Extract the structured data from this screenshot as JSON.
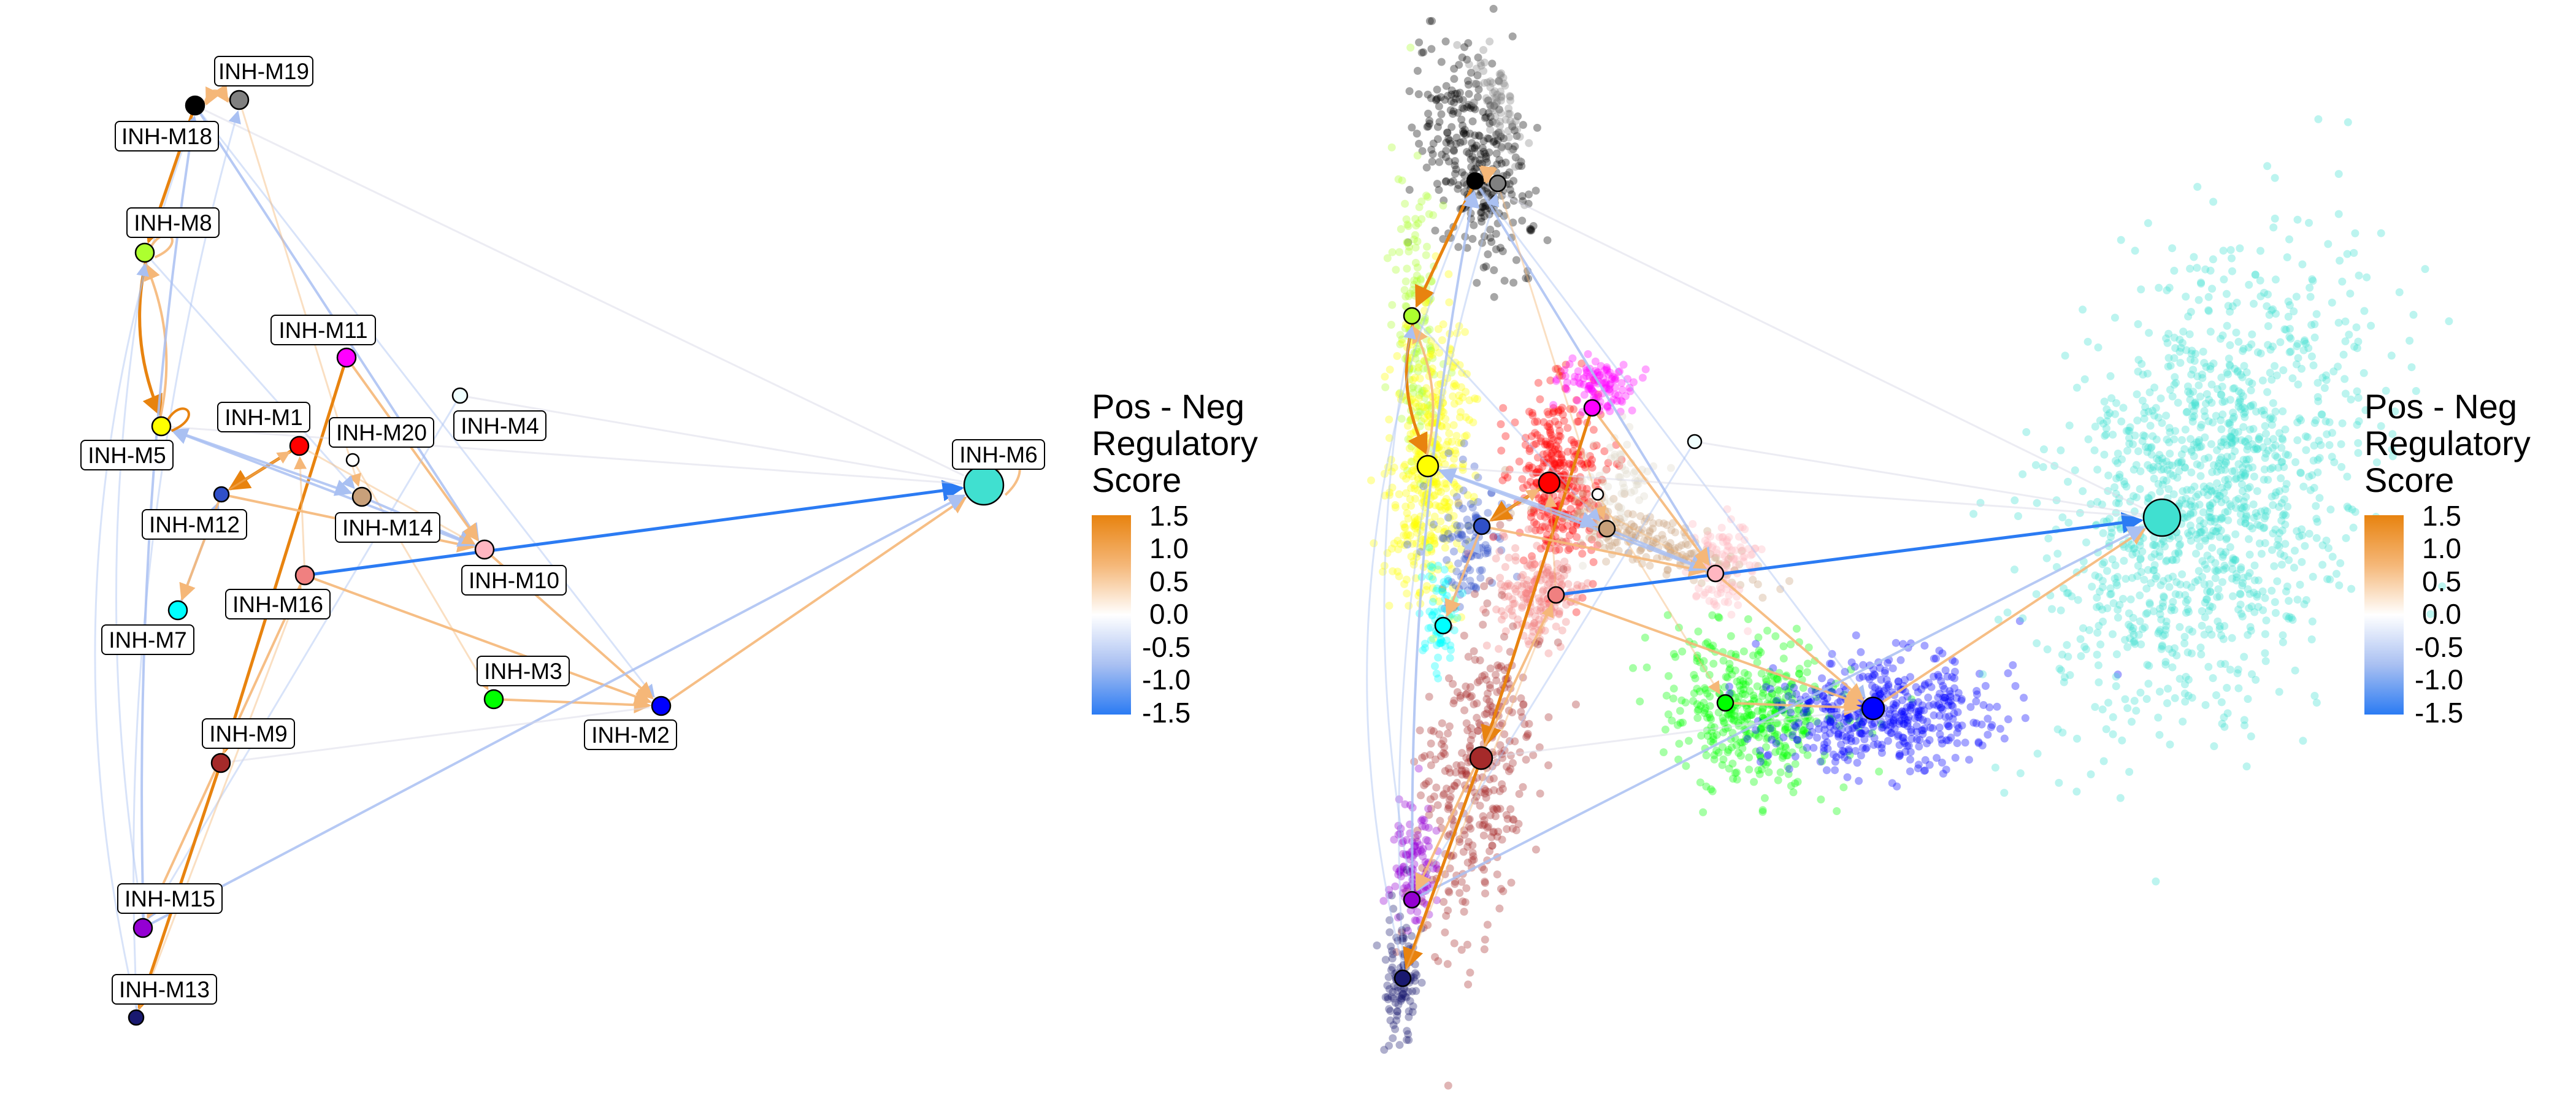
{
  "legend": {
    "title_lines": [
      "Pos - Neg",
      "Regulatory",
      "Score"
    ],
    "ticks": [
      "1.5",
      "1.0",
      "0.5",
      "0.0",
      "-0.5",
      "-1.0",
      "-1.5"
    ],
    "gradient_colors": [
      "#E8830F",
      "#F5B778",
      "#FFFFFF",
      "#A9C0F2",
      "#2B7BF3"
    ]
  },
  "network_nodes": [
    {
      "id": "INH-M19",
      "color": "#808080"
    },
    {
      "id": "INH-M18",
      "color": "#000000"
    },
    {
      "id": "INH-M8",
      "color": "#ADFF2F"
    },
    {
      "id": "INH-M11",
      "color": "#FF00FF"
    },
    {
      "id": "INH-M1",
      "color": "#FF0000"
    },
    {
      "id": "INH-M20",
      "color": "#FFFFFF"
    },
    {
      "id": "INH-M4",
      "color": "#F0FFFF"
    },
    {
      "id": "INH-M5",
      "color": "#FFFF00"
    },
    {
      "id": "INH-M12",
      "color": "#3050C8"
    },
    {
      "id": "INH-M14",
      "color": "#C8A07A"
    },
    {
      "id": "INH-M10",
      "color": "#FFB6C1"
    },
    {
      "id": "INH-M16",
      "color": "#F08080"
    },
    {
      "id": "INH-M7",
      "color": "#00FFFF"
    },
    {
      "id": "INH-M3",
      "color": "#00FF00"
    },
    {
      "id": "INH-M2",
      "color": "#0000FF"
    },
    {
      "id": "INH-M9",
      "color": "#A52A2A"
    },
    {
      "id": "INH-M15",
      "color": "#9400D3"
    },
    {
      "id": "INH-M13",
      "color": "#191970"
    },
    {
      "id": "INH-M6",
      "color": "#40E0D0"
    }
  ]
}
